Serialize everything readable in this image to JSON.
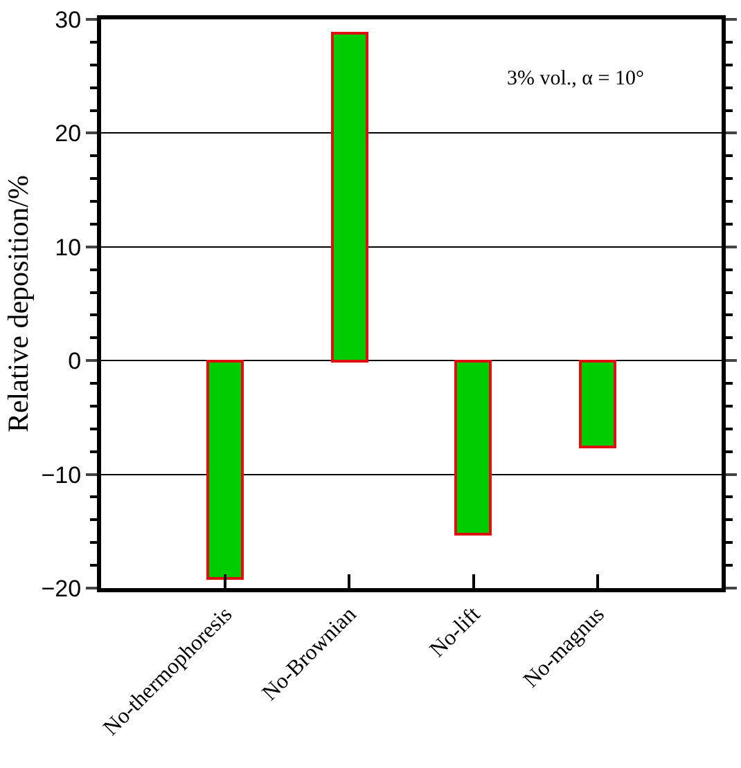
{
  "chart_data": {
    "type": "bar",
    "categories": [
      "No-thermophoresis",
      "No-Brownian",
      "No-lift",
      "No-magnus"
    ],
    "values": [
      -19.2,
      28.8,
      -15.3,
      -7.6
    ],
    "color": "#00cc00",
    "ylabel": "Relative deposition/%",
    "ylim": [
      -20,
      30
    ],
    "yticks": [
      {
        "value": -20,
        "label": "−20"
      },
      {
        "value": -10,
        "label": "−10"
      },
      0,
      10,
      20,
      30
    ],
    "grid": "y",
    "annotations": [
      "3% vol., α = 10°"
    ]
  }
}
